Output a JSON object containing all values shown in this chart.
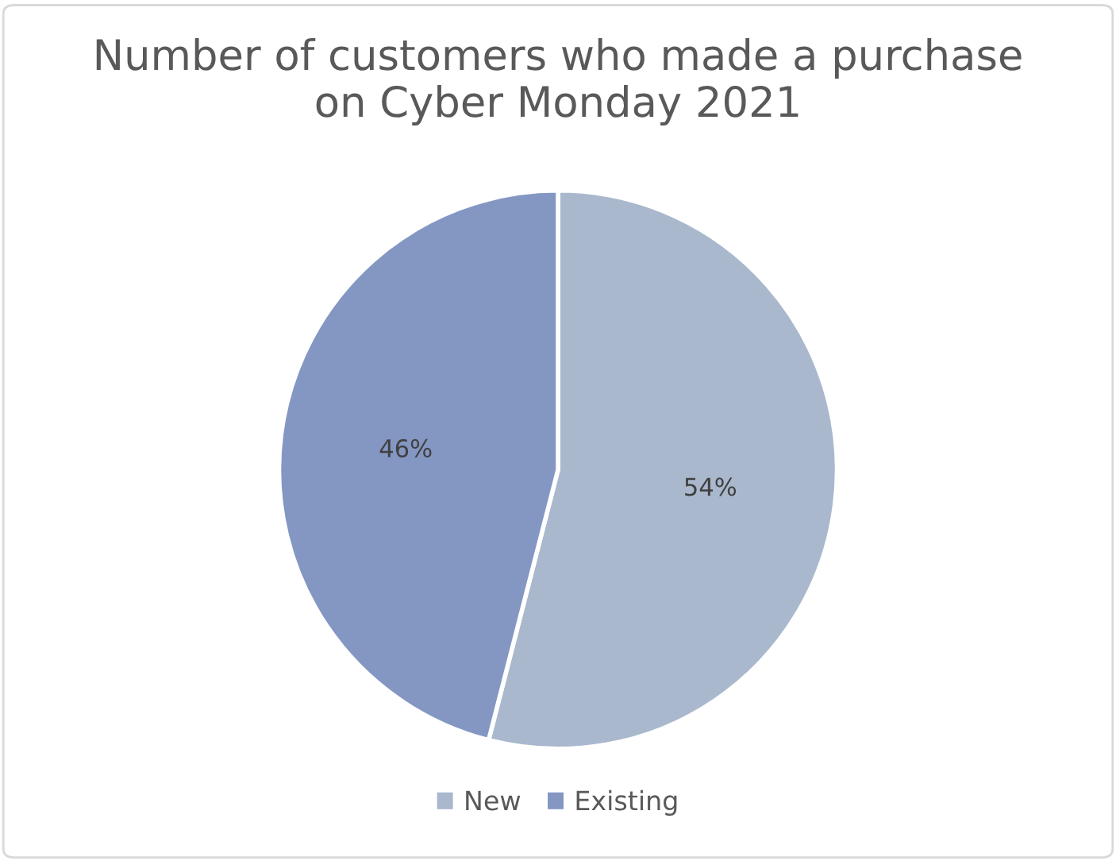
{
  "chart_data": {
    "type": "pie",
    "title": "Number of customers who made a purchase on Cyber Monday 2021",
    "categories": [
      "New",
      "Existing"
    ],
    "values": [
      54,
      46
    ],
    "colors": [
      "#a9b8cd",
      "#8497c3"
    ],
    "value_labels": [
      "54%",
      "46%"
    ],
    "legend": "bottom"
  }
}
